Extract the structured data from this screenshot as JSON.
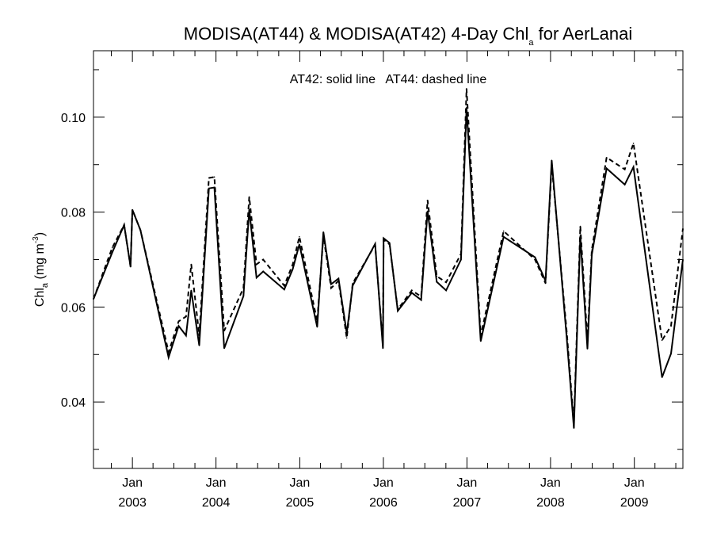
{
  "chart_data": {
    "type": "line",
    "title": "MODISA(AT44) & MODISA(AT42) 4-Day Chl",
    "title_subscript": "a",
    "title_suffix": " for AerLanai",
    "annotation": "AT42: solid line   AT44: dashed line",
    "ylabel": {
      "prefix": "Chl",
      "subscript": "a",
      "middle": " (mg m",
      "superscript": "-3",
      "suffix": ")"
    },
    "xlabel": "",
    "ylim": [
      0.026,
      0.114
    ],
    "xlim": [
      "2002-07-15",
      "2009-08-01"
    ],
    "y_ticks": [
      0.04,
      0.06,
      0.08,
      0.1
    ],
    "y_tick_labels": [
      "0.04",
      "0.06",
      "0.08",
      "0.10"
    ],
    "x_ticks": [
      {
        "date": "2003-01-01",
        "month": "Jan",
        "year": "2003"
      },
      {
        "date": "2004-01-01",
        "month": "Jan",
        "year": "2004"
      },
      {
        "date": "2005-01-01",
        "month": "Jan",
        "year": "2005"
      },
      {
        "date": "2006-01-01",
        "month": "Jan",
        "year": "2006"
      },
      {
        "date": "2007-01-01",
        "month": "Jan",
        "year": "2007"
      },
      {
        "date": "2008-01-01",
        "month": "Jan",
        "year": "2008"
      },
      {
        "date": "2009-01-01",
        "month": "Jan",
        "year": "2009"
      }
    ],
    "grid": false,
    "legend": "none",
    "series": [
      {
        "style": "solid",
        "color": "#000000",
        "points": [
          [
            "2002-07-15",
            0.0617
          ],
          [
            "2002-10-05",
            0.0715
          ],
          [
            "2002-11-26",
            0.0773
          ],
          [
            "2002-12-24",
            0.0685
          ],
          [
            "2003-01-01",
            0.0805
          ],
          [
            "2003-02-05",
            0.0762
          ],
          [
            "2003-06-08",
            0.0494
          ],
          [
            "2003-07-22",
            0.056
          ],
          [
            "2003-08-23",
            0.054
          ],
          [
            "2003-09-15",
            0.0635
          ],
          [
            "2003-10-20",
            0.0519
          ],
          [
            "2003-12-01",
            0.085
          ],
          [
            "2003-12-25",
            0.0852
          ],
          [
            "2004-02-06",
            0.0513
          ],
          [
            "2004-04-30",
            0.0623
          ],
          [
            "2004-05-25",
            0.0805
          ],
          [
            "2004-06-26",
            0.0662
          ],
          [
            "2004-07-25",
            0.0675
          ],
          [
            "2004-10-25",
            0.0637
          ],
          [
            "2004-12-01",
            0.068
          ],
          [
            "2004-12-30",
            0.0732
          ],
          [
            "2005-03-18",
            0.0558
          ],
          [
            "2005-04-14",
            0.0758
          ],
          [
            "2005-05-18",
            0.0648
          ],
          [
            "2005-06-19",
            0.066
          ],
          [
            "2005-07-25",
            0.0545
          ],
          [
            "2005-08-20",
            0.0645
          ],
          [
            "2005-11-26",
            0.0733
          ],
          [
            "2005-12-30",
            0.0513
          ],
          [
            "2006-01-02",
            0.0745
          ],
          [
            "2006-01-28",
            0.0735
          ],
          [
            "2006-03-05",
            0.0592
          ],
          [
            "2006-05-05",
            0.063
          ],
          [
            "2006-06-15",
            0.0615
          ],
          [
            "2006-07-13",
            0.0802
          ],
          [
            "2006-08-22",
            0.0653
          ],
          [
            "2006-10-02",
            0.0635
          ],
          [
            "2006-12-06",
            0.07
          ],
          [
            "2006-12-30",
            0.102
          ],
          [
            "2007-03-02",
            0.0528
          ],
          [
            "2007-06-10",
            0.0748
          ],
          [
            "2007-10-25",
            0.0705
          ],
          [
            "2007-12-10",
            0.0655
          ],
          [
            "2008-01-06",
            0.0909
          ],
          [
            "2008-03-12",
            0.0532
          ],
          [
            "2008-04-12",
            0.0345
          ],
          [
            "2008-05-10",
            0.075
          ],
          [
            "2008-06-10",
            0.0512
          ],
          [
            "2008-06-29",
            0.071
          ],
          [
            "2008-09-02",
            0.0892
          ],
          [
            "2008-11-20",
            0.0858
          ],
          [
            "2008-12-28",
            0.0895
          ],
          [
            "2009-05-02",
            0.0452
          ],
          [
            "2009-06-10",
            0.0502
          ],
          [
            "2009-08-01",
            0.07
          ]
        ]
      },
      {
        "style": "dashed",
        "color": "#000000",
        "points": [
          [
            "2002-07-15",
            0.0617
          ],
          [
            "2002-10-05",
            0.0725
          ],
          [
            "2002-11-26",
            0.0773
          ],
          [
            "2002-12-24",
            0.0685
          ],
          [
            "2003-01-01",
            0.0805
          ],
          [
            "2003-02-05",
            0.0762
          ],
          [
            "2003-06-08",
            0.0505
          ],
          [
            "2003-07-22",
            0.057
          ],
          [
            "2003-08-23",
            0.058
          ],
          [
            "2003-09-15",
            0.069
          ],
          [
            "2003-10-20",
            0.054
          ],
          [
            "2003-12-01",
            0.0872
          ],
          [
            "2003-12-25",
            0.0874
          ],
          [
            "2004-02-06",
            0.055
          ],
          [
            "2004-04-30",
            0.064
          ],
          [
            "2004-05-25",
            0.0832
          ],
          [
            "2004-06-26",
            0.069
          ],
          [
            "2004-07-25",
            0.07
          ],
          [
            "2004-10-25",
            0.0645
          ],
          [
            "2004-12-01",
            0.069
          ],
          [
            "2004-12-30",
            0.0748
          ],
          [
            "2005-03-18",
            0.057
          ],
          [
            "2005-04-14",
            0.075
          ],
          [
            "2005-05-18",
            0.064
          ],
          [
            "2005-06-19",
            0.0655
          ],
          [
            "2005-07-25",
            0.0535
          ],
          [
            "2005-08-20",
            0.065
          ],
          [
            "2005-11-26",
            0.0731
          ],
          [
            "2005-12-30",
            0.052
          ],
          [
            "2006-01-02",
            0.0742
          ],
          [
            "2006-01-28",
            0.0732
          ],
          [
            "2006-03-05",
            0.0595
          ],
          [
            "2006-05-05",
            0.0635
          ],
          [
            "2006-06-15",
            0.0622
          ],
          [
            "2006-07-13",
            0.0825
          ],
          [
            "2006-08-22",
            0.0665
          ],
          [
            "2006-10-02",
            0.0652
          ],
          [
            "2006-12-06",
            0.0712
          ],
          [
            "2006-12-30",
            0.106
          ],
          [
            "2007-03-02",
            0.054
          ],
          [
            "2007-06-10",
            0.076
          ],
          [
            "2007-10-25",
            0.07
          ],
          [
            "2007-12-10",
            0.065
          ],
          [
            "2008-01-06",
            0.09
          ],
          [
            "2008-03-12",
            0.0545
          ],
          [
            "2008-04-12",
            0.0355
          ],
          [
            "2008-05-10",
            0.077
          ],
          [
            "2008-06-10",
            0.053
          ],
          [
            "2008-06-29",
            0.072
          ],
          [
            "2008-09-02",
            0.0915
          ],
          [
            "2008-11-20",
            0.089
          ],
          [
            "2008-12-28",
            0.0945
          ],
          [
            "2009-05-02",
            0.053
          ],
          [
            "2009-06-10",
            0.056
          ],
          [
            "2009-08-01",
            0.0765
          ]
        ]
      }
    ]
  }
}
